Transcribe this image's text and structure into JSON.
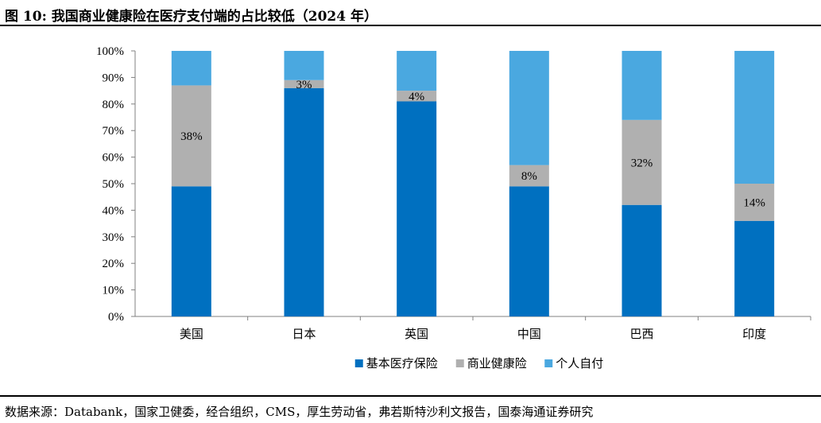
{
  "figure": {
    "title": "图 10:  我国商业健康险在医疗支付端的占比较低（2024 年）",
    "source": "数据来源：Databank，国家卫健委，经合组织，CMS，厚生劳动省，弗若斯特沙利文报告，国泰海通证券研究"
  },
  "chart_data": {
    "type": "bar",
    "stacked": true,
    "percent_stacked": true,
    "categories": [
      "美国",
      "日本",
      "英国",
      "中国",
      "巴西",
      "印度"
    ],
    "series": [
      {
        "name": "基本医疗保险",
        "color": "#0070C0",
        "values": [
          49,
          86,
          81,
          49,
          42,
          36
        ]
      },
      {
        "name": "商业健康险",
        "color": "#B0B0B0",
        "values": [
          38,
          3,
          4,
          8,
          32,
          14
        ],
        "labels": [
          "38%",
          "3%",
          "4%",
          "8%",
          "32%",
          "14%"
        ]
      },
      {
        "name": "个人自付",
        "color": "#4AA8E0",
        "values": [
          13,
          11,
          15,
          43,
          26,
          50
        ]
      }
    ],
    "ylim": [
      0,
      100
    ],
    "y_ticks": [
      "0%",
      "10%",
      "20%",
      "30%",
      "40%",
      "50%",
      "60%",
      "70%",
      "80%",
      "90%",
      "100%"
    ],
    "legend_position": "bottom",
    "grid": false
  }
}
